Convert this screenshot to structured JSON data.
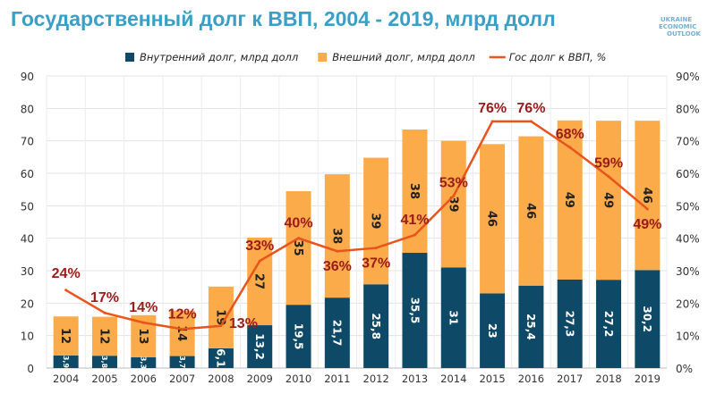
{
  "chart_data": {
    "type": "bar",
    "title": "Государственный долг к ВВП, 2004 - 2019, млрд долл",
    "categories": [
      "2004",
      "2005",
      "2006",
      "2007",
      "2008",
      "2009",
      "2010",
      "2011",
      "2012",
      "2013",
      "2014",
      "2015",
      "2016",
      "2017",
      "2018",
      "2019"
    ],
    "series": [
      {
        "name": "Внутренний долг, млрд долл",
        "type": "bar",
        "axis": "left",
        "color": "#0e4a67",
        "values": [
          3.9,
          3.8,
          3.3,
          3.7,
          6.1,
          13.2,
          19.5,
          21.7,
          25.8,
          35.5,
          31,
          23,
          25.4,
          27.3,
          27.2,
          30.2
        ],
        "labels": [
          "3,9",
          "3,8",
          "3,3",
          "3,7",
          "6,1",
          "13,2",
          "19,5",
          "21,7",
          "25,8",
          "35,5",
          "31",
          "23",
          "25,4",
          "27,3",
          "27,2",
          "30,2"
        ]
      },
      {
        "name": "Внешний долг, млрд долл",
        "type": "bar",
        "axis": "left",
        "color": "#fbab4a",
        "values": [
          12,
          12,
          13,
          14,
          19,
          27,
          35,
          38,
          39,
          38,
          39,
          46,
          46,
          49,
          49,
          46
        ],
        "labels": [
          "12",
          "12",
          "13",
          "14",
          "19",
          "27",
          "35",
          "38",
          "39",
          "38",
          "39",
          "46",
          "46",
          "49",
          "49",
          "46"
        ]
      },
      {
        "name": "Гос долг к ВВП, %",
        "type": "line",
        "axis": "right",
        "color": "#e8541c",
        "label_color": "#9b1a1a",
        "values": [
          24,
          17,
          14,
          12,
          13,
          33,
          40,
          36,
          37,
          41,
          53,
          76,
          76,
          68,
          59,
          49
        ],
        "labels": [
          "24%",
          "17%",
          "14%",
          "12%",
          "13%",
          "33%",
          "40%",
          "36%",
          "37%",
          "41%",
          "53%",
          "76%",
          "76%",
          "68%",
          "59%",
          "49%"
        ]
      }
    ],
    "ylim": [
      0,
      90
    ],
    "y_ticks": [
      "0",
      "10",
      "20",
      "30",
      "40",
      "50",
      "60",
      "70",
      "80",
      "90"
    ],
    "y2lim": [
      0,
      90
    ],
    "y2_ticks": [
      "0%",
      "10%",
      "20%",
      "30%",
      "40%",
      "50%",
      "60%",
      "70%",
      "80%",
      "90%"
    ],
    "stacked": true,
    "grid": true,
    "legend": "top"
  },
  "logo": [
    "UKRAINE",
    "ECONOMIC",
    "OUTLOOK"
  ]
}
